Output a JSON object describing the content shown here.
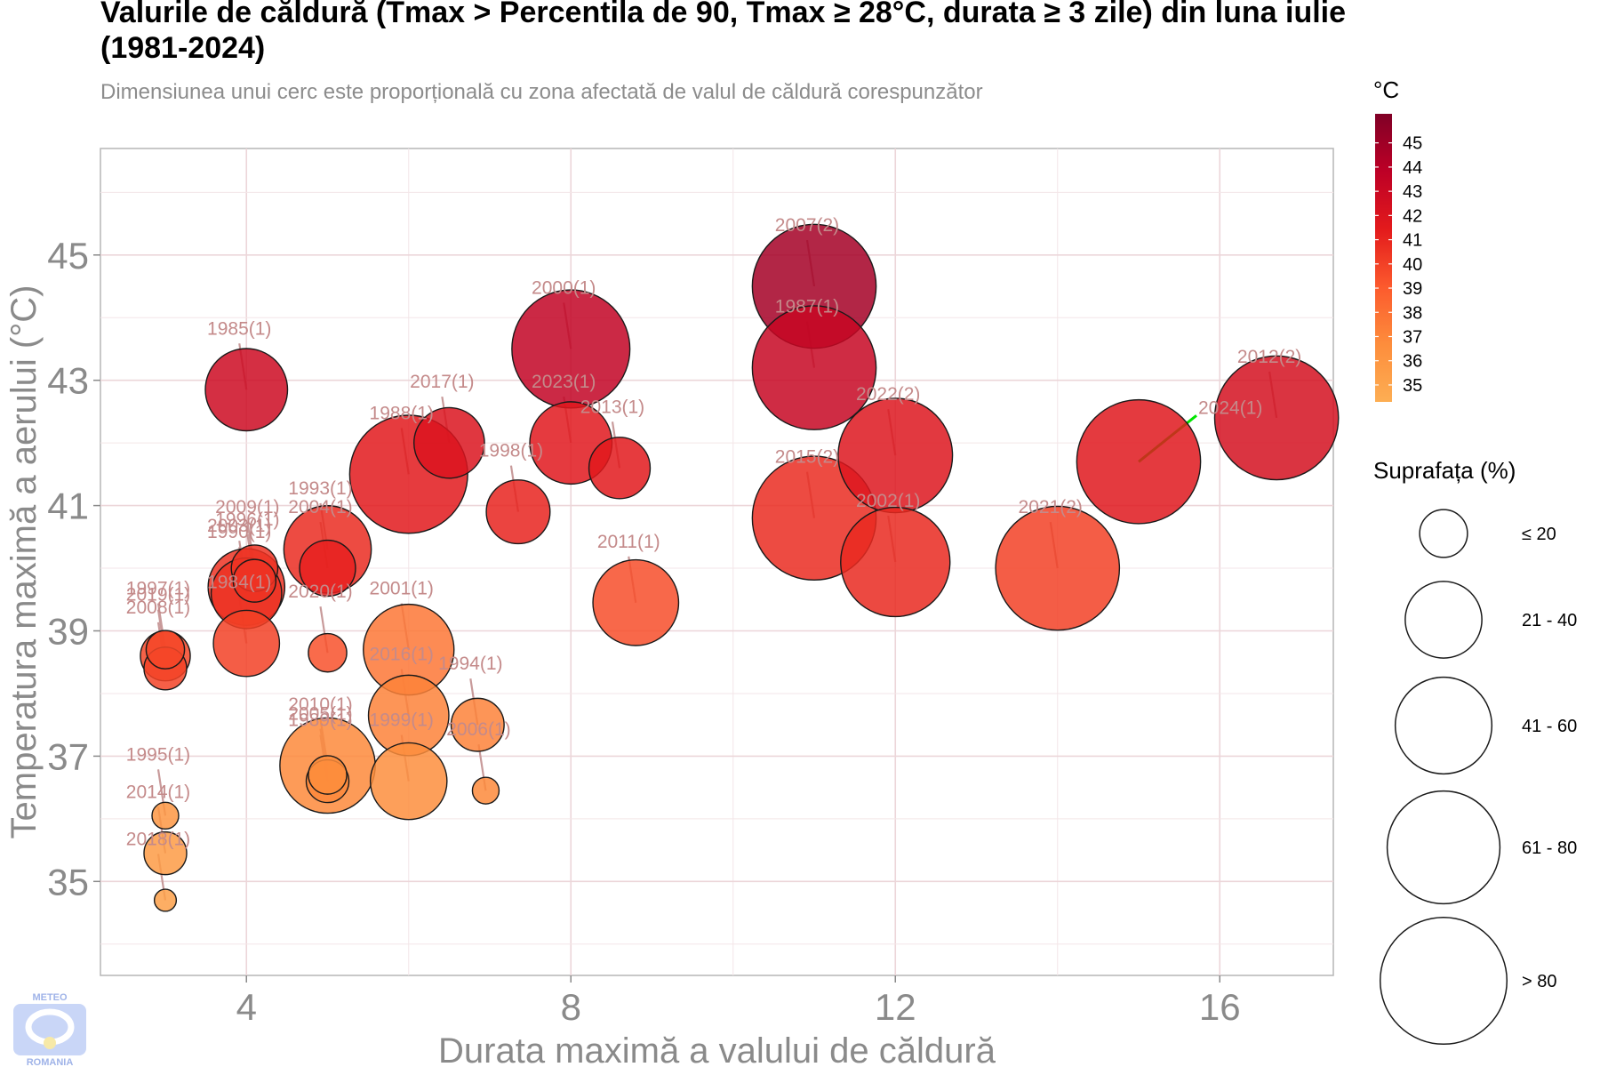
{
  "title": "Valurile de căldură (Tmax > Percentila de 90, Tmax ≥ 28°C, durata ≥ 3 zile) din luna iulie (1981-2024)",
  "subtitle": "Dimensiunea unui cerc este proporțională cu zona afectată de valul de căldură corespunzător",
  "logo": {
    "top": "METEO",
    "bottom": "ROMANIA"
  },
  "highlight_color": "#00e600",
  "chart_data": {
    "type": "scatter",
    "xlabel": "Durata maximă a valului de căldură",
    "ylabel": "Temperatura maximă a aerului (°C)",
    "xlim": [
      2.2,
      17.4
    ],
    "ylim": [
      33.5,
      46.7
    ],
    "xticks": [
      4,
      8,
      12,
      16
    ],
    "yticks": [
      35,
      37,
      39,
      41,
      43,
      45
    ],
    "grid": true,
    "color_legend": {
      "title": "°C",
      "min": 34.3,
      "max": 46.2,
      "ticks": [
        35,
        36,
        37,
        38,
        39,
        40,
        41,
        42,
        43,
        44,
        45
      ],
      "colors": [
        "#fdae53",
        "#fd8d3c",
        "#fc5a2d",
        "#e31a1c",
        "#bd0026",
        "#800026"
      ]
    },
    "size_legend": {
      "title": "Suprafața (%)",
      "items": [
        "≤ 20",
        "21 - 40",
        "41 - 60",
        "61 - 80",
        "> 80"
      ],
      "values": [
        10,
        30,
        50,
        70,
        90
      ]
    },
    "points": [
      {
        "label": "1985(1)",
        "x": 4,
        "y": 42.85,
        "size": 20,
        "temp": 42.8
      },
      {
        "label": "2000(1)",
        "x": 8,
        "y": 43.5,
        "size": 45,
        "temp": 43.5
      },
      {
        "label": "2007(2)",
        "x": 11,
        "y": 44.5,
        "size": 50,
        "temp": 44.8
      },
      {
        "label": "1987(1)",
        "x": 11,
        "y": 43.2,
        "size": 50,
        "temp": 43.2
      },
      {
        "label": "2012(2)",
        "x": 16.7,
        "y": 42.4,
        "size": 50,
        "temp": 42.4
      },
      {
        "label": "2024(1)",
        "x": 15,
        "y": 41.7,
        "size": 50,
        "temp": 41.7,
        "highlight": true
      },
      {
        "label": "2022(2)",
        "x": 12,
        "y": 41.8,
        "size": 42,
        "temp": 41.8
      },
      {
        "label": "2017(1)",
        "x": 6.5,
        "y": 42.0,
        "size": 14,
        "temp": 42.0
      },
      {
        "label": "1988(1)",
        "x": 6,
        "y": 41.5,
        "size": 45,
        "temp": 41.5
      },
      {
        "label": "2023(1)",
        "x": 8,
        "y": 42.0,
        "size": 20,
        "temp": 41.6
      },
      {
        "label": "2013(1)",
        "x": 8.6,
        "y": 41.6,
        "size": 10,
        "temp": 41.5
      },
      {
        "label": "1998(1)",
        "x": 7.35,
        "y": 40.9,
        "size": 11,
        "temp": 41.1
      },
      {
        "label": "2015(2)",
        "x": 11,
        "y": 40.8,
        "size": 50,
        "temp": 40.8
      },
      {
        "label": "2002(1)",
        "x": 12,
        "y": 40.1,
        "size": 38,
        "temp": 40.9
      },
      {
        "label": "2021(2)",
        "x": 14,
        "y": 40.0,
        "size": 50,
        "temp": 40.0
      },
      {
        "label": "2011(1)",
        "x": 8.8,
        "y": 39.45,
        "size": 22,
        "temp": 39.5
      },
      {
        "label": "1993(1)",
        "x": 5,
        "y": 40.3,
        "size": 23,
        "temp": 40.8
      },
      {
        "label": "2004(1)",
        "x": 5,
        "y": 40.0,
        "size": 8,
        "temp": 41.2
      },
      {
        "label": "2009(1)",
        "x": 4.1,
        "y": 40.0,
        "size": 5,
        "temp": 40.5
      },
      {
        "label": "1996(1)",
        "x": 4.1,
        "y": 39.8,
        "size": 4,
        "temp": 40.5
      },
      {
        "label": "2003(1)",
        "x": 4,
        "y": 39.7,
        "size": 17,
        "temp": 40.5
      },
      {
        "label": "1990(1)",
        "x": 4,
        "y": 39.6,
        "size": 14,
        "temp": 40.6
      },
      {
        "label": "1984(1)",
        "x": 4,
        "y": 38.8,
        "size": 12,
        "temp": 40.0
      },
      {
        "label": "2020(1)",
        "x": 5,
        "y": 38.65,
        "size": 3,
        "temp": 39.4
      },
      {
        "label": "2001(1)",
        "x": 6,
        "y": 38.7,
        "size": 25,
        "temp": 37.7
      },
      {
        "label": "2019(1)",
        "x": 3,
        "y": 38.6,
        "size": 6,
        "temp": 39.8
      },
      {
        "label": "1997(1)",
        "x": 3,
        "y": 38.7,
        "size": 3,
        "temp": 39.8
      },
      {
        "label": "2008(1)",
        "x": 3,
        "y": 38.4,
        "size": 4,
        "temp": 39.9
      },
      {
        "label": "2016(1)",
        "x": 6,
        "y": 37.65,
        "size": 19,
        "temp": 37.2
      },
      {
        "label": "1994(1)",
        "x": 6.85,
        "y": 37.5,
        "size": 7,
        "temp": 37.2
      },
      {
        "label": "1999(1)",
        "x": 6,
        "y": 36.6,
        "size": 17,
        "temp": 36.6
      },
      {
        "label": "2006(1)",
        "x": 6.95,
        "y": 36.45,
        "size": 1,
        "temp": 36.8
      },
      {
        "label": "2010(1)",
        "x": 5,
        "y": 36.85,
        "size": 28,
        "temp": 36.8
      },
      {
        "label": "2005(1)",
        "x": 5,
        "y": 36.7,
        "size": 3,
        "temp": 36.7
      },
      {
        "label": "1989(1)",
        "x": 5,
        "y": 36.6,
        "size": 4,
        "temp": 36.9
      },
      {
        "label": "1995(1)",
        "x": 3,
        "y": 36.05,
        "size": 1,
        "temp": 36.0
      },
      {
        "label": "2014(1)",
        "x": 3,
        "y": 35.45,
        "size": 4,
        "temp": 35.7
      },
      {
        "label": "2018(1)",
        "x": 3,
        "y": 34.7,
        "size": 0.5,
        "temp": 35.3
      }
    ]
  }
}
